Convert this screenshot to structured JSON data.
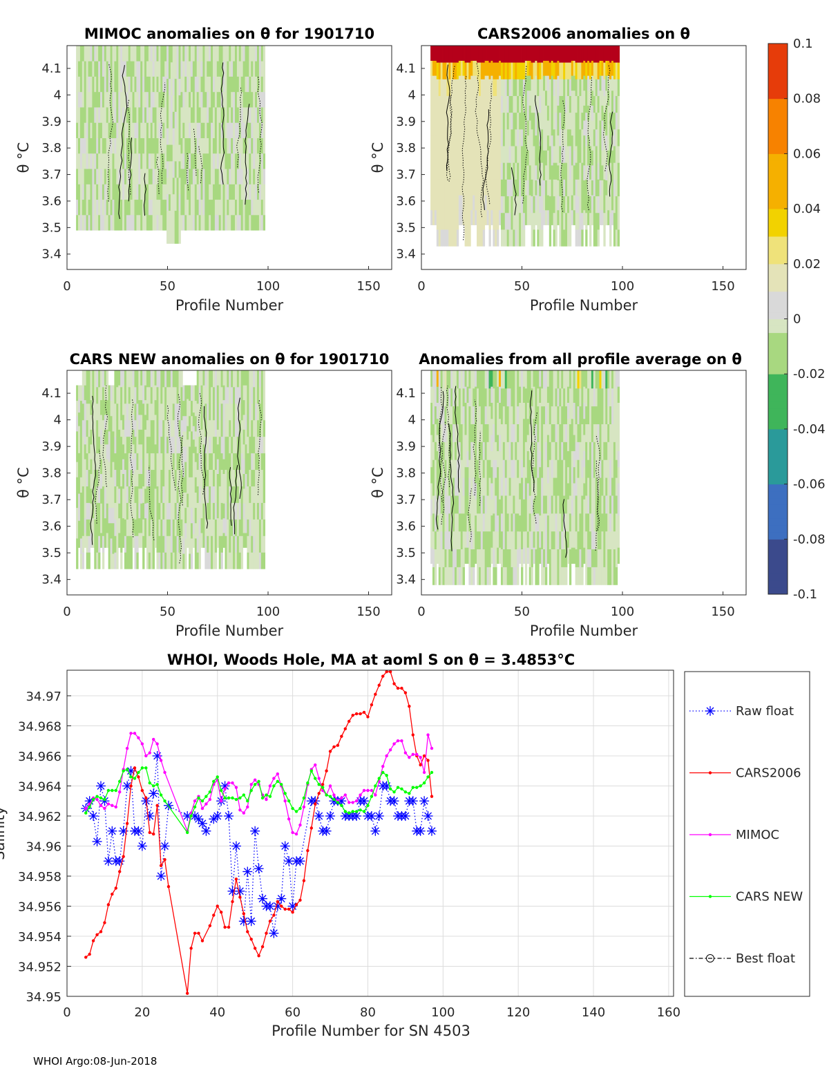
{
  "heatmaps": [
    {
      "title": "MIMOC anomalies on θ  for 1901710",
      "xlabel": "Profile Number",
      "ylabel": "θ °C",
      "style": "mimoc"
    },
    {
      "title": "CARS2006 anomalies on θ",
      "xlabel": "Profile Number",
      "ylabel": "θ °C",
      "style": "cars2006"
    },
    {
      "title": "CARS NEW anomalies on θ for 1901710",
      "xlabel": "Profile Number",
      "ylabel": "θ °C",
      "style": "carsnew"
    },
    {
      "title": "Anomalies from all profile average on θ",
      "xlabel": "Profile Number",
      "ylabel": "θ °C",
      "style": "avg"
    }
  ],
  "heatmap_axes": {
    "xticks": [
      "0",
      "50",
      "100",
      "150"
    ],
    "xtick_values": [
      0,
      50,
      100,
      150
    ],
    "xlim": [
      0,
      161.5
    ],
    "yticks": [
      "4.1",
      "4",
      "3.9",
      "3.8",
      "3.7",
      "3.6",
      "3.5",
      "3.4"
    ],
    "ytick_values": [
      4.1,
      4.0,
      3.9,
      3.8,
      3.7,
      3.6,
      3.5,
      3.4
    ],
    "ylim": [
      3.342,
      4.186
    ]
  },
  "colorbar": {
    "ticks": [
      "0.1",
      "0.08",
      "0.06",
      "0.04",
      "0.02",
      "0",
      "-0.02",
      "-0.04",
      "-0.06",
      "-0.08",
      "-0.1"
    ],
    "tick_values": [
      0.1,
      0.08,
      0.06,
      0.04,
      0.02,
      0,
      -0.02,
      -0.04,
      -0.06,
      -0.08,
      -0.1
    ],
    "range": [
      -0.1,
      0.1
    ]
  },
  "chart_data": {
    "type": "line",
    "title": "WHOI, Woods Hole, MA at aoml S on θ = 3.4853°C",
    "xlabel": "Profile Number for SN 4503",
    "ylabel": "Salinity",
    "xlim": [
      0,
      161.3
    ],
    "ylim": [
      34.95,
      34.9717
    ],
    "xticks": [
      "0",
      "20",
      "40",
      "60",
      "80",
      "100",
      "120",
      "140",
      "160"
    ],
    "xtick_values": [
      0,
      20,
      40,
      60,
      80,
      100,
      120,
      140,
      160
    ],
    "yticks": [
      "34.97",
      "34.968",
      "34.966",
      "34.964",
      "34.962",
      "34.96",
      "34.958",
      "34.956",
      "34.954",
      "34.952",
      "34.95"
    ],
    "ytick_values": [
      34.97,
      34.968,
      34.966,
      34.964,
      34.962,
      34.96,
      34.958,
      34.956,
      34.954,
      34.952,
      34.95
    ],
    "grid": true,
    "legend_placement": "right-outside",
    "series": [
      {
        "name": "Raw float",
        "color": "#0000ff",
        "style": "dotted-star",
        "x": [
          5,
          6,
          7,
          8,
          9,
          10,
          11,
          12,
          13,
          14,
          15,
          16,
          17,
          18,
          19,
          20,
          21,
          22,
          23,
          24,
          25,
          26,
          27,
          32,
          34,
          35,
          36,
          37,
          39,
          40,
          41,
          42,
          43,
          44,
          45,
          46,
          47,
          48,
          49,
          50,
          51,
          52,
          53,
          54,
          55,
          56,
          57,
          58,
          59,
          60,
          61,
          62,
          65,
          66,
          67,
          68,
          69,
          70,
          71,
          72,
          73,
          74,
          75,
          76,
          77,
          78,
          79,
          80,
          81,
          82,
          83,
          84,
          85,
          86,
          87,
          88,
          89,
          90,
          91,
          92,
          93,
          94,
          95,
          96,
          97
        ],
        "y": [
          34.9625,
          34.963,
          34.962,
          34.9603,
          34.964,
          34.963,
          34.959,
          34.961,
          34.959,
          34.959,
          34.961,
          34.964,
          34.965,
          34.961,
          34.961,
          34.96,
          34.963,
          34.962,
          34.9635,
          34.966,
          34.958,
          34.96,
          34.9627,
          34.962,
          34.962,
          34.9618,
          34.9615,
          34.961,
          34.9618,
          34.962,
          34.963,
          34.964,
          34.962,
          34.957,
          34.96,
          34.957,
          34.955,
          34.9583,
          34.955,
          34.961,
          34.9585,
          34.9565,
          34.956,
          34.956,
          34.9542,
          34.956,
          34.9565,
          34.96,
          34.959,
          34.956,
          34.959,
          34.959,
          34.963,
          34.963,
          34.962,
          34.961,
          34.961,
          34.962,
          34.963,
          34.963,
          34.963,
          34.962,
          34.962,
          34.962,
          34.962,
          34.963,
          34.963,
          34.962,
          34.962,
          34.961,
          34.962,
          34.964,
          34.964,
          34.963,
          34.963,
          34.962,
          34.962,
          34.962,
          34.963,
          34.963,
          34.961,
          34.961,
          34.963,
          34.962,
          34.961
        ]
      },
      {
        "name": "CARS2006",
        "color": "#ff0000",
        "style": "solid-dot",
        "x": [
          5,
          6,
          7,
          8,
          9,
          10,
          11,
          12,
          13,
          14,
          15,
          16,
          17,
          18,
          19,
          20,
          21,
          22,
          23,
          24,
          25,
          26,
          27,
          32,
          33,
          34,
          35,
          36,
          38,
          39,
          40,
          41,
          42,
          43,
          44,
          45,
          46,
          47,
          48,
          49,
          50,
          51,
          52,
          53,
          54,
          55,
          56,
          57,
          58,
          59,
          60,
          61,
          62,
          63,
          64,
          65,
          66,
          67,
          68,
          69,
          70,
          71,
          72,
          73,
          74,
          75,
          76,
          77,
          78,
          79,
          80,
          81,
          82,
          83,
          84,
          85,
          86,
          87,
          88,
          89,
          90,
          91,
          92,
          93,
          94,
          95,
          96,
          97
        ],
        "y": [
          34.9526,
          34.9528,
          34.9537,
          34.9541,
          34.9543,
          34.9549,
          34.9561,
          34.9568,
          34.9572,
          34.9583,
          34.9593,
          34.9615,
          34.964,
          34.9652,
          34.9646,
          34.9637,
          34.9632,
          34.9609,
          34.9608,
          34.9627,
          34.9587,
          34.9591,
          34.9573,
          34.9502,
          34.9532,
          34.9542,
          34.9542,
          34.9537,
          34.9547,
          34.9554,
          34.956,
          34.9556,
          34.9546,
          34.9546,
          34.9563,
          34.9578,
          34.9566,
          34.9555,
          34.9543,
          34.9538,
          34.9532,
          34.9527,
          34.9533,
          34.9542,
          34.955,
          34.9554,
          34.9563,
          34.956,
          34.9558,
          34.9558,
          34.9556,
          34.9561,
          34.9564,
          34.9577,
          34.9597,
          34.9612,
          34.9628,
          34.9635,
          34.9641,
          34.965,
          34.9663,
          34.9666,
          34.9667,
          34.9673,
          34.9678,
          34.9683,
          34.9687,
          34.9688,
          34.9688,
          34.9689,
          34.9686,
          34.9694,
          34.9701,
          34.9707,
          34.9713,
          34.9716,
          34.9716,
          34.9708,
          34.9705,
          34.9705,
          34.9702,
          34.9693,
          34.9674,
          34.966,
          34.9654,
          34.966,
          34.9657,
          34.9633
        ]
      },
      {
        "name": "MIMOC",
        "color": "#ff00ff",
        "style": "solid-dot",
        "x": [
          5,
          6,
          7,
          8,
          9,
          10,
          11,
          12,
          13,
          14,
          15,
          16,
          17,
          18,
          19,
          20,
          21,
          22,
          23,
          24,
          25,
          26,
          32,
          33,
          34,
          35,
          36,
          37,
          38,
          39,
          40,
          41,
          42,
          43,
          44,
          45,
          46,
          47,
          48,
          49,
          50,
          51,
          52,
          53,
          54,
          55,
          56,
          57,
          58,
          59,
          60,
          61,
          62,
          63,
          64,
          65,
          66,
          67,
          68,
          69,
          70,
          71,
          72,
          73,
          74,
          75,
          76,
          77,
          78,
          79,
          80,
          81,
          82,
          83,
          84,
          85,
          86,
          87,
          88,
          89,
          90,
          91,
          92,
          93,
          94,
          95,
          96,
          97
        ],
        "y": [
          34.9625,
          34.9628,
          34.9632,
          34.9631,
          34.9627,
          34.9625,
          34.9628,
          34.9627,
          34.9626,
          34.9636,
          34.9651,
          34.9665,
          34.9675,
          34.9675,
          34.9672,
          34.9668,
          34.966,
          34.9662,
          34.9671,
          34.9668,
          34.9657,
          34.9649,
          34.961,
          34.9622,
          34.963,
          34.9633,
          34.9625,
          34.9628,
          34.9631,
          34.9641,
          34.9644,
          34.963,
          34.9638,
          34.9642,
          34.9642,
          34.9639,
          34.9624,
          34.9622,
          34.9626,
          34.9641,
          34.9644,
          34.9641,
          34.9634,
          34.9631,
          34.964,
          34.9645,
          34.9648,
          34.964,
          34.963,
          34.9618,
          34.9609,
          34.9608,
          34.9614,
          34.9626,
          34.9641,
          34.9651,
          34.9654,
          34.9645,
          34.9637,
          34.9634,
          34.964,
          34.9634,
          34.963,
          34.9632,
          34.9634,
          34.9629,
          34.9629,
          34.963,
          34.9634,
          34.9637,
          34.9637,
          34.9637,
          34.9634,
          34.9643,
          34.9653,
          34.966,
          34.9664,
          34.9668,
          34.967,
          34.967,
          34.9662,
          34.9659,
          34.9661,
          34.9661,
          34.9659,
          34.9649,
          34.9674,
          34.9665
        ]
      },
      {
        "name": "CARS NEW",
        "color": "#00ff00",
        "style": "solid-dot",
        "x": [
          5,
          6,
          7,
          8,
          9,
          10,
          11,
          12,
          13,
          14,
          15,
          16,
          17,
          18,
          19,
          20,
          21,
          22,
          23,
          24,
          25,
          26,
          32,
          33,
          34,
          35,
          36,
          37,
          38,
          39,
          40,
          41,
          42,
          43,
          44,
          45,
          46,
          47,
          48,
          49,
          50,
          51,
          52,
          53,
          54,
          55,
          56,
          57,
          58,
          59,
          60,
          61,
          62,
          63,
          64,
          65,
          66,
          67,
          68,
          69,
          70,
          71,
          72,
          73,
          74,
          75,
          76,
          77,
          78,
          79,
          80,
          81,
          82,
          83,
          84,
          85,
          86,
          87,
          88,
          89,
          90,
          91,
          92,
          93,
          94,
          95,
          96,
          97
        ],
        "y": [
          34.9622,
          34.9626,
          34.9631,
          34.9633,
          34.9632,
          34.9631,
          34.9637,
          34.9637,
          34.9637,
          34.9643,
          34.965,
          34.9651,
          34.9646,
          34.9645,
          34.9649,
          34.9652,
          34.9652,
          34.9642,
          34.964,
          34.9641,
          34.9634,
          34.963,
          34.9609,
          34.962,
          34.9626,
          34.9632,
          34.963,
          34.9633,
          34.9636,
          34.9643,
          34.9646,
          34.9637,
          34.9632,
          34.9632,
          34.9632,
          34.9631,
          34.9632,
          34.9634,
          34.963,
          34.9637,
          34.9641,
          34.9643,
          34.9632,
          34.9634,
          34.9633,
          34.964,
          34.9643,
          34.9641,
          34.9635,
          34.963,
          34.9625,
          34.9623,
          34.9625,
          34.9632,
          34.9642,
          34.965,
          34.9645,
          34.9641,
          34.9639,
          34.9634,
          34.9633,
          34.9631,
          34.9629,
          34.9627,
          34.9623,
          34.9622,
          34.9623,
          34.9623,
          34.9624,
          34.9623,
          34.9627,
          34.9633,
          34.964,
          34.9645,
          34.9649,
          34.9647,
          34.9638,
          34.9636,
          34.9639,
          34.9638,
          34.9636,
          34.9635,
          34.9639,
          34.9639,
          34.964,
          34.9642,
          34.9646,
          34.9649
        ]
      },
      {
        "name": "Best float",
        "color": "#000000",
        "style": "dashdot-circle",
        "x": [],
        "y": []
      }
    ]
  },
  "footer": "WHOI Argo:08-Jun-2018"
}
